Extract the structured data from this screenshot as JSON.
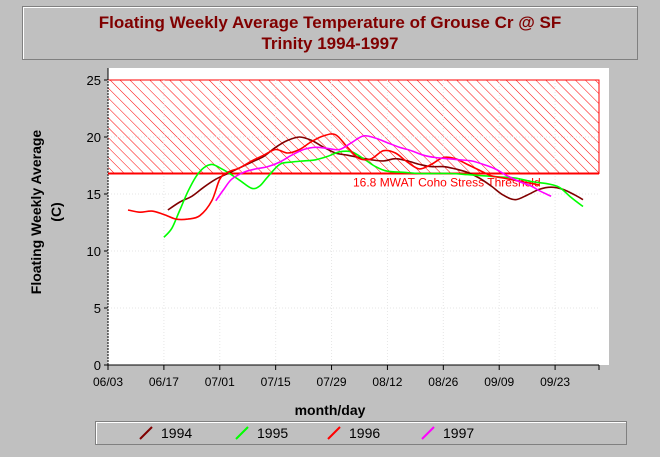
{
  "chart_data": {
    "type": "line",
    "title_lines": [
      "Floating Weekly Average Temperature of Grouse Cr @ SF",
      "Trinity 1994-1997"
    ],
    "xlabel": "month/day",
    "ylabel_lines": [
      "Floating Weekly Average",
      "(C)"
    ],
    "xlim": [
      0,
      123
    ],
    "ylim": [
      0,
      25
    ],
    "x_ticks": [
      {
        "day": 0,
        "label": "06/03"
      },
      {
        "day": 14,
        "label": "06/17"
      },
      {
        "day": 28,
        "label": "07/01"
      },
      {
        "day": 42,
        "label": "07/15"
      },
      {
        "day": 56,
        "label": "07/29"
      },
      {
        "day": 70,
        "label": "08/12"
      },
      {
        "day": 84,
        "label": "08/26"
      },
      {
        "day": 98,
        "label": "09/09"
      },
      {
        "day": 112,
        "label": "09/23"
      }
    ],
    "y_ticks": [
      0,
      5,
      10,
      15,
      20,
      25
    ],
    "threshold": {
      "value": 16.8,
      "label": "16.8 MWAT Coho Stress Threshold",
      "color": "#ff0000"
    },
    "stress_band": [
      16.8,
      25
    ],
    "series": [
      {
        "name": "1994",
        "color": "#800000",
        "points": [
          [
            15,
            13.6
          ],
          [
            18,
            14.3
          ],
          [
            21,
            14.8
          ],
          [
            24,
            15.6
          ],
          [
            27,
            16.3
          ],
          [
            30,
            16.8
          ],
          [
            33,
            17.3
          ],
          [
            36,
            17.8
          ],
          [
            39,
            18.3
          ],
          [
            42,
            19.1
          ],
          [
            45,
            19.7
          ],
          [
            48,
            20.0
          ],
          [
            51,
            19.7
          ],
          [
            54,
            19.1
          ],
          [
            57,
            18.6
          ],
          [
            60,
            18.4
          ],
          [
            63,
            18.2
          ],
          [
            66,
            18.0
          ],
          [
            69,
            17.9
          ],
          [
            72,
            18.1
          ],
          [
            75,
            17.9
          ],
          [
            78,
            17.6
          ],
          [
            81,
            17.4
          ],
          [
            84,
            17.4
          ],
          [
            87,
            17.2
          ],
          [
            90,
            16.9
          ],
          [
            93,
            16.4
          ],
          [
            96,
            15.7
          ],
          [
            99,
            14.9
          ],
          [
            102,
            14.5
          ],
          [
            105,
            14.9
          ],
          [
            108,
            15.4
          ],
          [
            111,
            15.6
          ],
          [
            114,
            15.4
          ],
          [
            117,
            14.9
          ],
          [
            119,
            14.5
          ]
        ]
      },
      {
        "name": "1995",
        "color": "#00ff00",
        "points": [
          [
            14,
            11.2
          ],
          [
            16,
            12.0
          ],
          [
            18,
            13.6
          ],
          [
            20,
            15.2
          ],
          [
            22,
            16.5
          ],
          [
            24,
            17.3
          ],
          [
            26,
            17.6
          ],
          [
            28,
            17.3
          ],
          [
            30,
            16.9
          ],
          [
            33,
            16.2
          ],
          [
            36,
            15.5
          ],
          [
            38,
            15.7
          ],
          [
            40,
            16.5
          ],
          [
            43,
            17.6
          ],
          [
            46,
            17.8
          ],
          [
            49,
            17.9
          ],
          [
            52,
            18.0
          ],
          [
            55,
            18.3
          ],
          [
            58,
            18.7
          ],
          [
            61,
            18.7
          ],
          [
            64,
            18.1
          ],
          [
            67,
            17.4
          ],
          [
            70,
            17.0
          ],
          [
            74,
            16.9
          ],
          [
            78,
            16.8
          ],
          [
            82,
            16.8
          ],
          [
            86,
            16.8
          ],
          [
            90,
            16.7
          ],
          [
            94,
            16.6
          ],
          [
            98,
            16.5
          ],
          [
            102,
            16.4
          ],
          [
            106,
            16.1
          ],
          [
            110,
            15.9
          ],
          [
            113,
            15.6
          ],
          [
            116,
            14.7
          ],
          [
            119,
            13.9
          ]
        ]
      },
      {
        "name": "1996",
        "color": "#ff0000",
        "points": [
          [
            5,
            13.6
          ],
          [
            8,
            13.4
          ],
          [
            11,
            13.5
          ],
          [
            14,
            13.2
          ],
          [
            17,
            12.8
          ],
          [
            20,
            12.8
          ],
          [
            23,
            13.1
          ],
          [
            26,
            14.4
          ],
          [
            28,
            16.3
          ],
          [
            30,
            16.9
          ],
          [
            33,
            17.3
          ],
          [
            36,
            17.9
          ],
          [
            39,
            18.4
          ],
          [
            42,
            18.9
          ],
          [
            45,
            18.6
          ],
          [
            48,
            18.9
          ],
          [
            51,
            19.6
          ],
          [
            54,
            20.1
          ],
          [
            57,
            20.2
          ],
          [
            60,
            19.1
          ],
          [
            63,
            18.1
          ],
          [
            66,
            18.1
          ],
          [
            69,
            18.8
          ],
          [
            72,
            18.6
          ],
          [
            75,
            17.8
          ],
          [
            78,
            17.2
          ],
          [
            81,
            17.6
          ],
          [
            84,
            18.2
          ],
          [
            87,
            18.1
          ],
          [
            90,
            17.6
          ],
          [
            93,
            17.1
          ],
          [
            96,
            16.6
          ],
          [
            99,
            16.4
          ],
          [
            102,
            16.2
          ],
          [
            105,
            16.0
          ],
          [
            108,
            15.8
          ]
        ]
      },
      {
        "name": "1997",
        "color": "#ff00ff",
        "points": [
          [
            27,
            14.4
          ],
          [
            29,
            15.4
          ],
          [
            31,
            16.3
          ],
          [
            34,
            16.9
          ],
          [
            37,
            17.2
          ],
          [
            40,
            17.4
          ],
          [
            43,
            17.8
          ],
          [
            46,
            18.4
          ],
          [
            49,
            18.9
          ],
          [
            52,
            19.1
          ],
          [
            55,
            19.0
          ],
          [
            58,
            18.9
          ],
          [
            61,
            19.5
          ],
          [
            64,
            20.1
          ],
          [
            67,
            19.9
          ],
          [
            70,
            19.5
          ],
          [
            73,
            19.1
          ],
          [
            76,
            18.8
          ],
          [
            79,
            18.4
          ],
          [
            82,
            18.2
          ],
          [
            85,
            18.1
          ],
          [
            88,
            18.0
          ],
          [
            91,
            17.9
          ],
          [
            94,
            17.6
          ],
          [
            97,
            17.2
          ],
          [
            100,
            16.6
          ],
          [
            103,
            16.1
          ],
          [
            106,
            15.7
          ],
          [
            108,
            15.3
          ],
          [
            111,
            14.8
          ]
        ]
      }
    ]
  }
}
